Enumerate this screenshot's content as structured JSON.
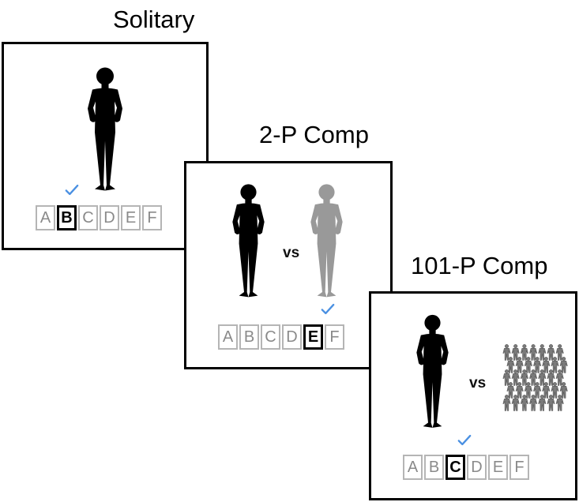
{
  "panels": [
    {
      "title": "Solitary",
      "vs_label": "",
      "choices": [
        "A",
        "B",
        "C",
        "D",
        "E",
        "F"
      ],
      "selected": "B"
    },
    {
      "title": "2-P Comp",
      "vs_label": "vs",
      "choices": [
        "A",
        "B",
        "C",
        "D",
        "E",
        "F"
      ],
      "selected": "E"
    },
    {
      "title": "101-P Comp",
      "vs_label": "vs",
      "choices": [
        "A",
        "B",
        "C",
        "D",
        "E",
        "F"
      ],
      "selected": "C"
    }
  ],
  "colors": {
    "player": "#000000",
    "opponent": "#999999",
    "crowd": "#7a7a7a",
    "check": "#4a90e2",
    "choice_border": "#b5b5b5",
    "choice_text": "#8a8a8a"
  },
  "icons": {
    "player": "person-silhouette-icon",
    "check": "checkmark-icon",
    "crowd": "crowd-icon"
  }
}
